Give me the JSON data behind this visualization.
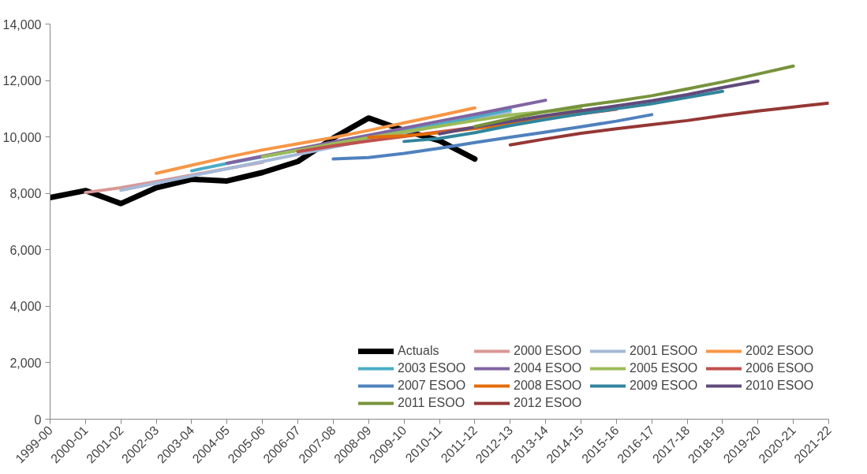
{
  "chart_data": {
    "type": "line",
    "categories": [
      "1999-00",
      "2000-01",
      "2001-02",
      "2002-03",
      "2003-04",
      "2004-05",
      "2005-06",
      "2006-07",
      "2007-08",
      "2008-09",
      "2009-10",
      "2010-11",
      "2011-12",
      "2012-13",
      "2013-14",
      "2014-15",
      "2015-16",
      "2016-17",
      "2017-18",
      "2018-19",
      "2019-20",
      "2020-21",
      "2021-22"
    ],
    "ylim": [
      0,
      14000
    ],
    "yticks": [
      {
        "value": 0,
        "label": "0"
      },
      {
        "value": 2000,
        "label": "2,000"
      },
      {
        "value": 4000,
        "label": "4,000"
      },
      {
        "value": 6000,
        "label": "6,000"
      },
      {
        "value": 8000,
        "label": "8,000"
      },
      {
        "value": 10000,
        "label": "10,000"
      },
      {
        "value": 12000,
        "label": "12,000"
      },
      {
        "value": 14000,
        "label": "14,000"
      }
    ],
    "grid": false,
    "legend": "bottom right",
    "marker": "none",
    "line_style": "solid",
    "series": [
      {
        "name": "Actuals",
        "color": "#000000",
        "values": [
          7850,
          8100,
          7640,
          8200,
          8500,
          8440,
          8740,
          9130,
          9960,
          10670,
          10230,
          9870,
          9220,
          null,
          null,
          null,
          null,
          null,
          null,
          null,
          null,
          null,
          null
        ]
      },
      {
        "name": "2000 ESOO",
        "color": "#d99795",
        "values": [
          null,
          8030,
          8200,
          8420,
          8650,
          8880,
          9100,
          null,
          null,
          null,
          null,
          null,
          null,
          null,
          null,
          null,
          null,
          null,
          null,
          null,
          null,
          null,
          null
        ]
      },
      {
        "name": "2001 ESOO",
        "color": "#a5b8d7",
        "values": [
          null,
          null,
          8110,
          8360,
          8620,
          8870,
          9130,
          9380,
          9640,
          9890,
          10140,
          10400,
          10650,
          10900,
          null,
          null,
          null,
          null,
          null,
          null,
          null,
          null,
          null
        ]
      },
      {
        "name": "2002 ESOO",
        "color": "#f79646",
        "values": [
          null,
          null,
          null,
          8710,
          9000,
          9280,
          9540,
          9760,
          9980,
          10230,
          10500,
          10760,
          11030,
          null,
          null,
          null,
          null,
          null,
          null,
          null,
          null,
          null,
          null
        ]
      },
      {
        "name": "2003 ESOO",
        "color": "#4bacc6",
        "values": [
          null,
          null,
          null,
          null,
          8800,
          9060,
          9300,
          9530,
          9760,
          9990,
          10220,
          10450,
          10700,
          10970,
          null,
          null,
          null,
          null,
          null,
          null,
          null,
          null,
          null
        ]
      },
      {
        "name": "2004 ESOO",
        "color": "#8064a2",
        "values": [
          null,
          null,
          null,
          null,
          null,
          9070,
          9320,
          9570,
          9820,
          10060,
          10310,
          10560,
          10800,
          11050,
          11300,
          null,
          null,
          null,
          null,
          null,
          null,
          null,
          null
        ]
      },
      {
        "name": "2005 ESOO",
        "color": "#9bbb59",
        "values": [
          null,
          null,
          null,
          null,
          null,
          null,
          9300,
          9530,
          9760,
          9980,
          10180,
          10380,
          10580,
          10780,
          10900,
          11000,
          null,
          null,
          null,
          null,
          null,
          null,
          null
        ]
      },
      {
        "name": "2006 ESOO",
        "color": "#c0504d",
        "values": [
          null,
          null,
          null,
          null,
          null,
          null,
          null,
          9480,
          9680,
          9860,
          10020,
          10180,
          10340,
          10500,
          10660,
          10820,
          10980,
          null,
          null,
          null,
          null,
          null,
          null
        ]
      },
      {
        "name": "2007 ESOO",
        "color": "#4f81bd",
        "values": [
          null,
          null,
          null,
          null,
          null,
          null,
          null,
          null,
          9220,
          9270,
          9420,
          9600,
          9800,
          9990,
          10170,
          10360,
          10560,
          10790,
          null,
          null,
          null,
          null,
          null
        ]
      },
      {
        "name": "2008 ESOO",
        "color": "#e46c0a",
        "values": [
          null,
          null,
          null,
          null,
          null,
          null,
          null,
          null,
          null,
          9990,
          10040,
          10150,
          10300,
          10450,
          10650,
          10840,
          11020,
          null,
          null,
          null,
          null,
          null,
          null
        ]
      },
      {
        "name": "2009 ESOO",
        "color": "#31859c",
        "values": [
          null,
          null,
          null,
          null,
          null,
          null,
          null,
          null,
          null,
          null,
          9840,
          9950,
          10150,
          10400,
          10620,
          10820,
          11000,
          11180,
          11400,
          11620,
          null,
          null,
          null
        ]
      },
      {
        "name": "2010 ESOO",
        "color": "#604a7b",
        "values": [
          null,
          null,
          null,
          null,
          null,
          null,
          null,
          null,
          null,
          null,
          null,
          10110,
          10350,
          10550,
          10760,
          10930,
          11100,
          11280,
          11500,
          11750,
          11980,
          null,
          null
        ]
      },
      {
        "name": "2011 ESOO",
        "color": "#77933c",
        "values": [
          null,
          null,
          null,
          null,
          null,
          null,
          null,
          null,
          null,
          null,
          null,
          null,
          10370,
          10650,
          10900,
          11100,
          11270,
          11460,
          11700,
          11950,
          12230,
          12510,
          null
        ]
      },
      {
        "name": "2012 ESOO",
        "color": "#953735",
        "values": [
          null,
          null,
          null,
          null,
          null,
          null,
          null,
          null,
          null,
          null,
          null,
          null,
          null,
          9720,
          9930,
          10130,
          10290,
          10440,
          10580,
          10760,
          10920,
          11060,
          11200
        ]
      }
    ]
  }
}
